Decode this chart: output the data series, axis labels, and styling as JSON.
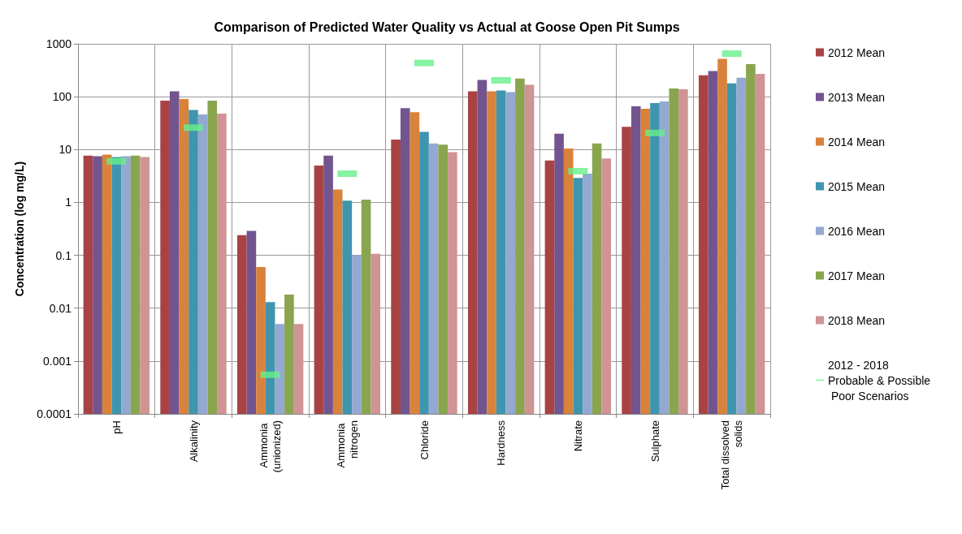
{
  "chart_data": {
    "type": "bar",
    "title": "Comparison of Predicted Water Quality vs Actual at Goose Open Pit Sumps",
    "ylabel": "Concentration (log mg/L)",
    "categories": [
      "pH",
      "Alkalinity",
      "Ammonia (unionized)",
      "Ammonia nitrogen",
      "Chloride",
      "Hardness",
      "Nitrate",
      "Sulphate",
      "Total dissolved solids"
    ],
    "series": [
      {
        "name": "2012 Mean",
        "color": "#a94343",
        "values": [
          7.7,
          84,
          0.24,
          5.0,
          15.5,
          127,
          6.2,
          27,
          255
        ]
      },
      {
        "name": "2013 Mean",
        "color": "#72548f",
        "values": [
          7.5,
          127,
          0.29,
          7.7,
          61,
          208,
          20,
          66,
          305
        ]
      },
      {
        "name": "2014 Mean",
        "color": "#d9823b",
        "values": [
          8.0,
          90,
          0.06,
          1.76,
          51,
          127,
          10.5,
          59,
          520
        ]
      },
      {
        "name": "2015 Mean",
        "color": "#3f95ad",
        "values": [
          7.2,
          56,
          0.013,
          1.08,
          21.6,
          131,
          2.9,
          76,
          179
        ]
      },
      {
        "name": "2016 Mean",
        "color": "#93a9d1",
        "values": [
          7.5,
          46,
          0.005,
          0.1,
          13,
          122,
          3.5,
          81,
          229
        ]
      },
      {
        "name": "2017 Mean",
        "color": "#89a54e",
        "values": [
          7.7,
          84,
          0.018,
          1.13,
          12.4,
          221,
          13.1,
          143,
          415
        ]
      },
      {
        "name": "2018 Mean",
        "color": "#d09494",
        "values": [
          7.2,
          48,
          0.005,
          0.107,
          8.9,
          168,
          6.8,
          138,
          271
        ]
      },
      {
        "name": "2012 - 2018 Probable & Possible Poor Scenarios",
        "type": "scatter",
        "marker": "square",
        "color": "#66f08a",
        "values": [
          6.0,
          26,
          0.00055,
          3.5,
          435,
          204,
          3.9,
          20.6,
          652
        ]
      }
    ],
    "log": "y",
    "ylim": [
      0.0001,
      1000
    ],
    "yticks": [
      0.0001,
      0.001,
      0.01,
      0.1,
      1,
      10,
      100,
      1000
    ],
    "grid": true,
    "legend": "right"
  }
}
